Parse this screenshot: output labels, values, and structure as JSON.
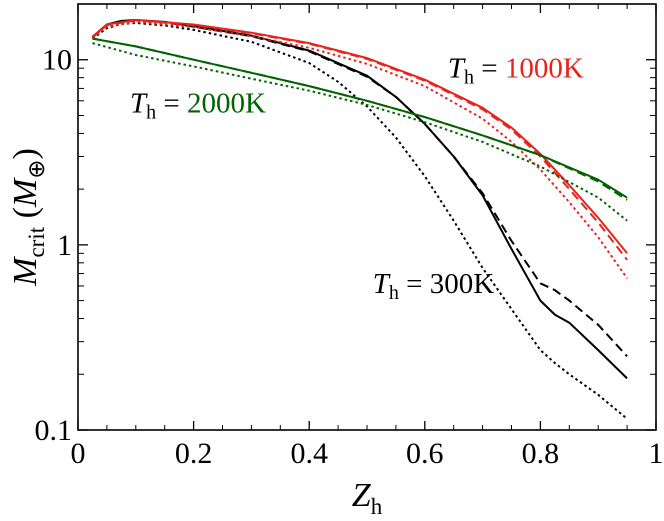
{
  "chart_data": {
    "type": "line",
    "xlabel": "Z",
    "xlabel_sub": "h",
    "ylabel_prefix": "M",
    "ylabel_sub": "crit",
    "ylabel_unit_open": " (",
    "ylabel_unit_symbol": "M",
    "ylabel_unit_sub": "⊕",
    "ylabel_unit_close": ")",
    "xlim": [
      0,
      1
    ],
    "ylim": [
      0.1,
      20
    ],
    "yscale": "log",
    "grid": false,
    "legend": "none",
    "x_ticks": [
      {
        "value": 0,
        "label": "0"
      },
      {
        "value": 0.2,
        "label": "0.2"
      },
      {
        "value": 0.4,
        "label": "0.4"
      },
      {
        "value": 0.6,
        "label": "0.6"
      },
      {
        "value": 0.8,
        "label": "0.8"
      },
      {
        "value": 1,
        "label": "1"
      }
    ],
    "y_ticks": [
      {
        "value": 0.1,
        "label": "0.1"
      },
      {
        "value": 1,
        "label": "1"
      },
      {
        "value": 10,
        "label": "10"
      }
    ],
    "annotations": [
      {
        "id": "t300",
        "prefix": "T",
        "sub": "h",
        "text": " = 300K",
        "value_color": "#000000",
        "x": 0.51,
        "y": 0.55
      },
      {
        "id": "t1000",
        "prefix": "T",
        "sub": "h",
        "text": " = ",
        "value": "1000K",
        "value_color": "#e8231c",
        "x": 0.64,
        "y": 8.0
      },
      {
        "id": "t2000",
        "prefix": "T",
        "sub": "h",
        "text": " = ",
        "value": "2000K",
        "value_color": "#006400",
        "x": 0.09,
        "y": 5.2
      }
    ],
    "series": [
      {
        "group": "300K",
        "style": "solid",
        "color": "#000000",
        "x": [
          0.025,
          0.05,
          0.075,
          0.1,
          0.15,
          0.2,
          0.3,
          0.4,
          0.5,
          0.55,
          0.6,
          0.65,
          0.7,
          0.75,
          0.8,
          0.825,
          0.85,
          0.9,
          0.95
        ],
        "y": [
          13.3,
          15.5,
          16.2,
          16.4,
          16.0,
          15.2,
          13.5,
          11.2,
          8.2,
          6.3,
          4.5,
          3.0,
          1.85,
          0.95,
          0.5,
          0.42,
          0.38,
          0.27,
          0.19
        ]
      },
      {
        "group": "300K",
        "style": "dashed",
        "color": "#000000",
        "x": [
          0.025,
          0.05,
          0.075,
          0.1,
          0.15,
          0.2,
          0.3,
          0.4,
          0.5,
          0.55,
          0.6,
          0.65,
          0.7,
          0.75,
          0.8,
          0.825,
          0.85,
          0.9,
          0.95
        ],
        "y": [
          13.2,
          15.4,
          16.1,
          16.3,
          15.9,
          15.1,
          13.4,
          11.1,
          8.1,
          6.3,
          4.5,
          3.0,
          1.9,
          1.05,
          0.62,
          0.57,
          0.5,
          0.37,
          0.25
        ]
      },
      {
        "group": "300K",
        "style": "dotted",
        "color": "#000000",
        "x": [
          0.025,
          0.05,
          0.075,
          0.1,
          0.15,
          0.2,
          0.3,
          0.4,
          0.45,
          0.5,
          0.55,
          0.6,
          0.65,
          0.7,
          0.75,
          0.8,
          0.825,
          0.85,
          0.9,
          0.95
        ],
        "y": [
          13.0,
          14.8,
          15.6,
          15.8,
          15.3,
          14.5,
          12.5,
          9.6,
          7.6,
          5.6,
          3.8,
          2.35,
          1.35,
          0.75,
          0.45,
          0.27,
          0.23,
          0.2,
          0.155,
          0.115
        ]
      },
      {
        "group": "1000K",
        "style": "solid",
        "color": "#e8231c",
        "x": [
          0.025,
          0.05,
          0.1,
          0.2,
          0.3,
          0.4,
          0.5,
          0.6,
          0.7,
          0.75,
          0.8,
          0.85,
          0.9,
          0.95
        ],
        "y": [
          13.3,
          15.5,
          16.4,
          15.5,
          14.0,
          12.3,
          10.2,
          7.8,
          5.5,
          4.3,
          3.1,
          2.1,
          1.4,
          0.9
        ]
      },
      {
        "group": "1000K",
        "style": "dashed",
        "color": "#e8231c",
        "x": [
          0.025,
          0.05,
          0.1,
          0.2,
          0.3,
          0.4,
          0.5,
          0.6,
          0.7,
          0.75,
          0.8,
          0.85,
          0.9,
          0.95
        ],
        "y": [
          13.2,
          15.4,
          16.3,
          15.4,
          13.9,
          12.2,
          10.1,
          7.7,
          5.4,
          4.2,
          3.0,
          2.0,
          1.32,
          0.83
        ]
      },
      {
        "group": "1000K",
        "style": "dotted",
        "color": "#e8231c",
        "x": [
          0.025,
          0.05,
          0.1,
          0.2,
          0.3,
          0.4,
          0.5,
          0.6,
          0.7,
          0.75,
          0.8,
          0.85,
          0.9,
          0.95
        ],
        "y": [
          13.1,
          15.1,
          16.0,
          15.0,
          13.4,
          11.6,
          9.5,
          7.2,
          4.8,
          3.6,
          2.55,
          1.7,
          1.1,
          0.66
        ]
      },
      {
        "group": "2000K",
        "style": "solid",
        "color": "#006400",
        "x": [
          0.025,
          0.1,
          0.2,
          0.3,
          0.4,
          0.5,
          0.6,
          0.7,
          0.8,
          0.9,
          0.95
        ],
        "y": [
          13.0,
          11.8,
          10.0,
          8.5,
          7.2,
          6.0,
          4.9,
          3.9,
          3.05,
          2.25,
          1.8
        ]
      },
      {
        "group": "2000K",
        "style": "dashed",
        "color": "#006400",
        "x": [
          0.025,
          0.1,
          0.2,
          0.3,
          0.4,
          0.5,
          0.6,
          0.7,
          0.8,
          0.9,
          0.95
        ],
        "y": [
          13.0,
          11.8,
          10.0,
          8.5,
          7.2,
          6.0,
          4.9,
          3.9,
          3.05,
          2.2,
          1.75
        ]
      },
      {
        "group": "2000K",
        "style": "dotted",
        "color": "#006400",
        "x": [
          0.025,
          0.1,
          0.2,
          0.3,
          0.4,
          0.5,
          0.6,
          0.7,
          0.8,
          0.9,
          0.95
        ],
        "y": [
          12.3,
          10.6,
          9.2,
          7.9,
          6.8,
          5.7,
          4.6,
          3.6,
          2.65,
          1.8,
          1.35
        ]
      }
    ]
  }
}
